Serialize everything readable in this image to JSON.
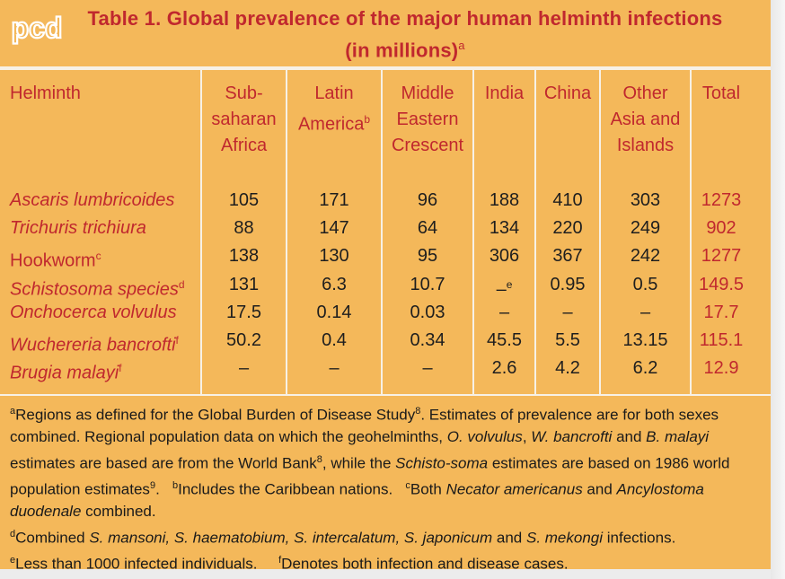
{
  "logo": {
    "text": "pcd"
  },
  "title": {
    "text": "Table 1. Global prevalence of the major human helminth infections (in millions)",
    "sup": "a"
  },
  "columns": [
    {
      "lines": [
        "Helminth"
      ]
    },
    {
      "lines": [
        "Sub-",
        "saharan",
        "Africa"
      ]
    },
    {
      "lines": [
        "Latin",
        "America"
      ],
      "sup": "b"
    },
    {
      "lines": [
        "Middle",
        "Eastern",
        "Crescent"
      ]
    },
    {
      "lines": [
        "India"
      ]
    },
    {
      "lines": [
        "China"
      ]
    },
    {
      "lines": [
        "Other",
        "Asia and",
        "Islands"
      ]
    },
    {
      "lines": [
        "Total"
      ]
    }
  ],
  "rows": [
    {
      "name": "Ascaris lumbricoides",
      "sup": "",
      "italic": true,
      "values": [
        "105",
        "171",
        "96",
        "188",
        "410",
        "303"
      ],
      "total": "1273"
    },
    {
      "name": "Trichuris trichiura",
      "sup": "",
      "italic": true,
      "values": [
        "88",
        "147",
        "64",
        "134",
        "220",
        "249"
      ],
      "total": "902"
    },
    {
      "name": "Hookworm",
      "sup": "c",
      "italic": false,
      "values": [
        "138",
        "130",
        "95",
        "306",
        "367",
        "242"
      ],
      "total": "1277"
    },
    {
      "name": "Schistosoma species",
      "sup": "d",
      "italic": true,
      "values": [
        "131",
        "6.3",
        "10.7",
        "–",
        "0.95",
        "0.5"
      ],
      "value_sups": [
        "",
        "",
        "",
        "e",
        "",
        ""
      ],
      "total": "149.5"
    },
    {
      "name": "Onchocerca volvulus",
      "sup": "",
      "italic": true,
      "values": [
        "17.5",
        "0.14",
        "0.03",
        "–",
        "–",
        "–"
      ],
      "total": "17.7"
    },
    {
      "name": "Wuchereria bancrofti",
      "sup": "f",
      "italic": true,
      "values": [
        "50.2",
        "0.4",
        "0.34",
        "45.5",
        "5.5",
        "13.15"
      ],
      "total": "115.1"
    },
    {
      "name": "Brugia malayi",
      "sup": "f",
      "italic": true,
      "values": [
        "–",
        "–",
        "–",
        "2.6",
        "4.2",
        "6.2"
      ],
      "total": "12.9"
    }
  ],
  "footnotes": {
    "a_sup": "a",
    "a_text_1": "Regions as defined for the Global Burden of Disease Study",
    "a_ref_1": "8",
    "a_text_2": ". Estimates of prevalence are for both sexes combined. Regional population data on which the geohelminths, ",
    "a_ital_1": "O. volvulus",
    "a_text_3": ", ",
    "a_ital_2": "W. bancrofti",
    "a_text_4": " and ",
    "a_ital_3": "B. malayi",
    "a_text_5": " estimates are based are from the World Bank",
    "a_ref_2": "8",
    "a_text_6": ", while the ",
    "a_ital_4": "Schisto-soma",
    "a_text_7": " estimates are based on 1986 world population estimates",
    "a_ref_3": "9",
    "a_text_8": ".",
    "b_sup": "b",
    "b_text": "Includes the Caribbean nations.",
    "c_sup": "c",
    "c_text_1": "Both ",
    "c_ital_1": "Necator americanus",
    "c_text_2": " and ",
    "c_ital_2": "Ancylostoma duodenale",
    "c_text_3": " combined.",
    "d_sup": "d",
    "d_text_1": "Combined ",
    "d_ital": "S. mansoni, S. haematobium, S. intercalatum, S. japonicum",
    "d_text_2": " and ",
    "d_ital_2": "S. mekongi",
    "d_text_3": " infections.",
    "e_sup": "e",
    "e_text": "Less than 1000 infected individuals.",
    "f_sup": "f",
    "f_text": "Denotes both infection and disease cases."
  }
}
